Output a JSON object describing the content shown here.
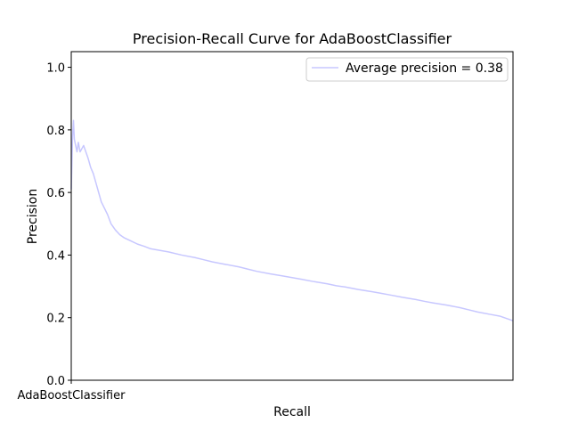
{
  "chart_data": {
    "type": "line",
    "title": "Precision-Recall Curve for AdaBoostClassifier",
    "xlabel": "Recall",
    "ylabel": "Precision",
    "x_tick_label": "AdaBoostClassifier",
    "xlim": [
      0,
      1
    ],
    "ylim": [
      0,
      1.05
    ],
    "y_ticks": [
      0.0,
      0.2,
      0.4,
      0.6,
      0.8,
      1.0
    ],
    "grid": false,
    "legend_position": "top-right",
    "series": [
      {
        "name": "Average precision = 0.38",
        "color": "#c7c7ff",
        "x": [
          0.0,
          0.003,
          0.005,
          0.007,
          0.01,
          0.013,
          0.016,
          0.02,
          0.024,
          0.028,
          0.033,
          0.038,
          0.044,
          0.05,
          0.056,
          0.062,
          0.068,
          0.075,
          0.082,
          0.09,
          0.1,
          0.11,
          0.12,
          0.135,
          0.15,
          0.165,
          0.18,
          0.2,
          0.22,
          0.25,
          0.28,
          0.3,
          0.32,
          0.35,
          0.38,
          0.4,
          0.42,
          0.45,
          0.48,
          0.5,
          0.52,
          0.55,
          0.58,
          0.6,
          0.62,
          0.65,
          0.68,
          0.7,
          0.72,
          0.75,
          0.78,
          0.8,
          0.82,
          0.85,
          0.88,
          0.9,
          0.92,
          0.95,
          0.97,
          0.98,
          0.99,
          1.0
        ],
        "y": [
          0.61,
          0.78,
          0.83,
          0.77,
          0.75,
          0.73,
          0.76,
          0.73,
          0.74,
          0.75,
          0.73,
          0.71,
          0.68,
          0.66,
          0.63,
          0.6,
          0.57,
          0.55,
          0.53,
          0.5,
          0.48,
          0.465,
          0.455,
          0.445,
          0.435,
          0.428,
          0.42,
          0.415,
          0.41,
          0.4,
          0.392,
          0.385,
          0.378,
          0.37,
          0.362,
          0.355,
          0.348,
          0.34,
          0.333,
          0.328,
          0.323,
          0.315,
          0.308,
          0.302,
          0.298,
          0.29,
          0.283,
          0.278,
          0.273,
          0.265,
          0.258,
          0.252,
          0.247,
          0.24,
          0.232,
          0.225,
          0.218,
          0.21,
          0.205,
          0.2,
          0.195,
          0.19
        ]
      }
    ]
  }
}
